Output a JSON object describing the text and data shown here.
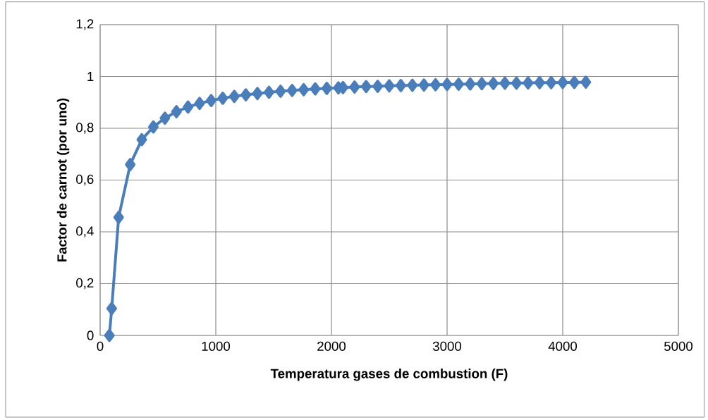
{
  "chart_data": {
    "type": "line",
    "xlabel": "Temperatura  gases de combustion (F)",
    "ylabel": "Factor de carnot (por uno)",
    "x": [
      80,
      100,
      160,
      260,
      360,
      460,
      560,
      660,
      760,
      860,
      960,
      1060,
      1160,
      1260,
      1360,
      1460,
      1560,
      1660,
      1760,
      1860,
      1960,
      2060,
      2100,
      2200,
      2300,
      2400,
      2500,
      2600,
      2700,
      2800,
      2900,
      3000,
      3100,
      3200,
      3300,
      3400,
      3500,
      3600,
      3700,
      3800,
      3900,
      4000,
      4100,
      4200
    ],
    "series": [
      {
        "color": "#4a7ebb",
        "values": [
          0,
          0.104,
          0.456,
          0.66,
          0.756,
          0.805,
          0.839,
          0.864,
          0.882,
          0.896,
          0.907,
          0.916,
          0.923,
          0.929,
          0.934,
          0.939,
          0.943,
          0.946,
          0.949,
          0.952,
          0.954,
          0.956,
          0.957,
          0.959,
          0.961,
          0.962,
          0.964,
          0.965,
          0.966,
          0.967,
          0.968,
          0.969,
          0.97,
          0.971,
          0.972,
          0.973,
          0.974,
          0.974,
          0.975,
          0.976,
          0.976,
          0.977,
          0.977,
          0.978
        ]
      }
    ],
    "xlim": [
      0,
      5000
    ],
    "ylim": [
      0,
      1.2
    ],
    "xticks": [
      0,
      1000,
      2000,
      3000,
      4000,
      5000
    ],
    "yticks": [
      0,
      {
        "value": 0.2,
        "label": "0,2"
      },
      {
        "value": 0.4,
        "label": "0,4"
      },
      {
        "value": 0.6,
        "label": "0,6"
      },
      {
        "value": 0.8,
        "label": "0,8"
      },
      1,
      {
        "value": 1.2,
        "label": "1,2"
      }
    ],
    "grid": true,
    "legend": false,
    "marker": "diamond",
    "line_style": "solid"
  }
}
